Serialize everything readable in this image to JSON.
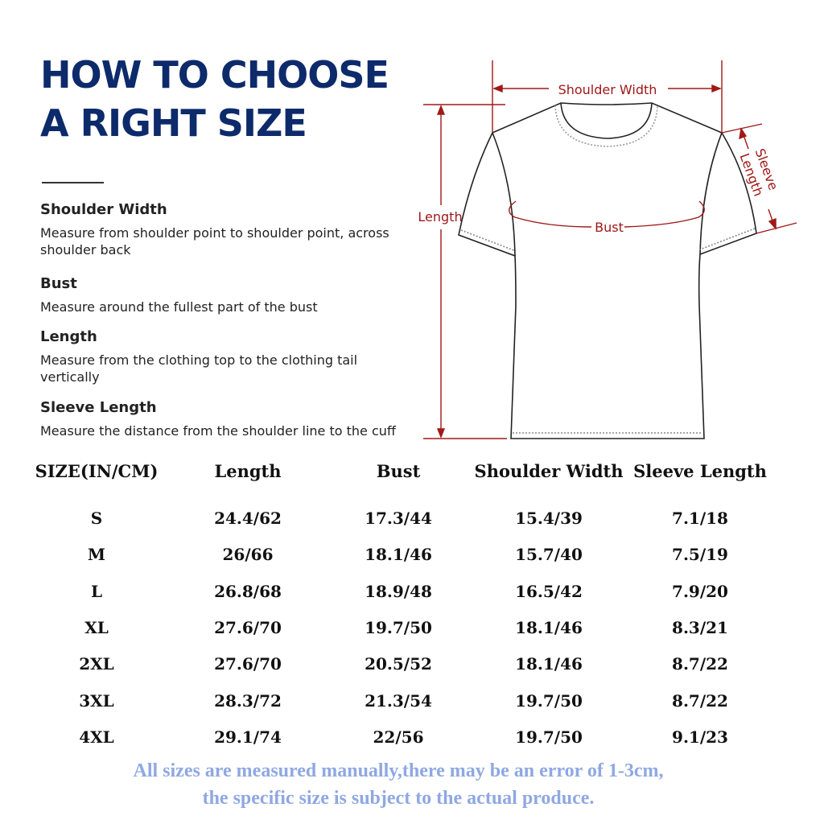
{
  "title_lines": [
    "HOW TO CHOOSE",
    "A RIGHT SIZE"
  ],
  "colors": {
    "title": "#0d2a6b",
    "measure_lines": "#a01818",
    "footnote": "#8fa8e3"
  },
  "guide": [
    {
      "heading": "Shoulder Width",
      "desc": "Measure from shoulder point to shoulder point, across shoulder back"
    },
    {
      "heading": "Bust",
      "desc": "Measure around the fullest part of the bust"
    },
    {
      "heading": "Length",
      "desc": "Measure from the clothing top to the clothing tail vertically"
    },
    {
      "heading": "Sleeve Length",
      "desc": "Measure the distance from the shoulder line to the cuff"
    }
  ],
  "diagram": {
    "shoulder_width": "Shoulder Width",
    "length": "Length",
    "bust": "Bust",
    "sleeve_1": "Sleeve",
    "sleeve_2": "Length"
  },
  "table": {
    "headers": [
      "SIZE(IN/CM)",
      "Length",
      "Bust",
      "Shoulder Width",
      "Sleeve Length"
    ],
    "rows": [
      [
        "S",
        "24.4/62",
        "17.3/44",
        "15.4/39",
        "7.1/18"
      ],
      [
        "M",
        "26/66",
        "18.1/46",
        "15.7/40",
        "7.5/19"
      ],
      [
        "L",
        "26.8/68",
        "18.9/48",
        "16.5/42",
        "7.9/20"
      ],
      [
        "XL",
        "27.6/70",
        "19.7/50",
        "18.1/46",
        "8.3/21"
      ],
      [
        "2XL",
        "27.6/70",
        "20.5/52",
        "18.1/46",
        "8.7/22"
      ],
      [
        "3XL",
        "28.3/72",
        "21.3/54",
        "19.7/50",
        "8.7/22"
      ],
      [
        "4XL",
        "29.1/74",
        "22/56",
        "19.7/50",
        "9.1/23"
      ]
    ]
  },
  "footnote": [
    "All sizes are measured manually,there may be an error of 1-3cm,",
    "the specific size is subject to the actual produce."
  ]
}
